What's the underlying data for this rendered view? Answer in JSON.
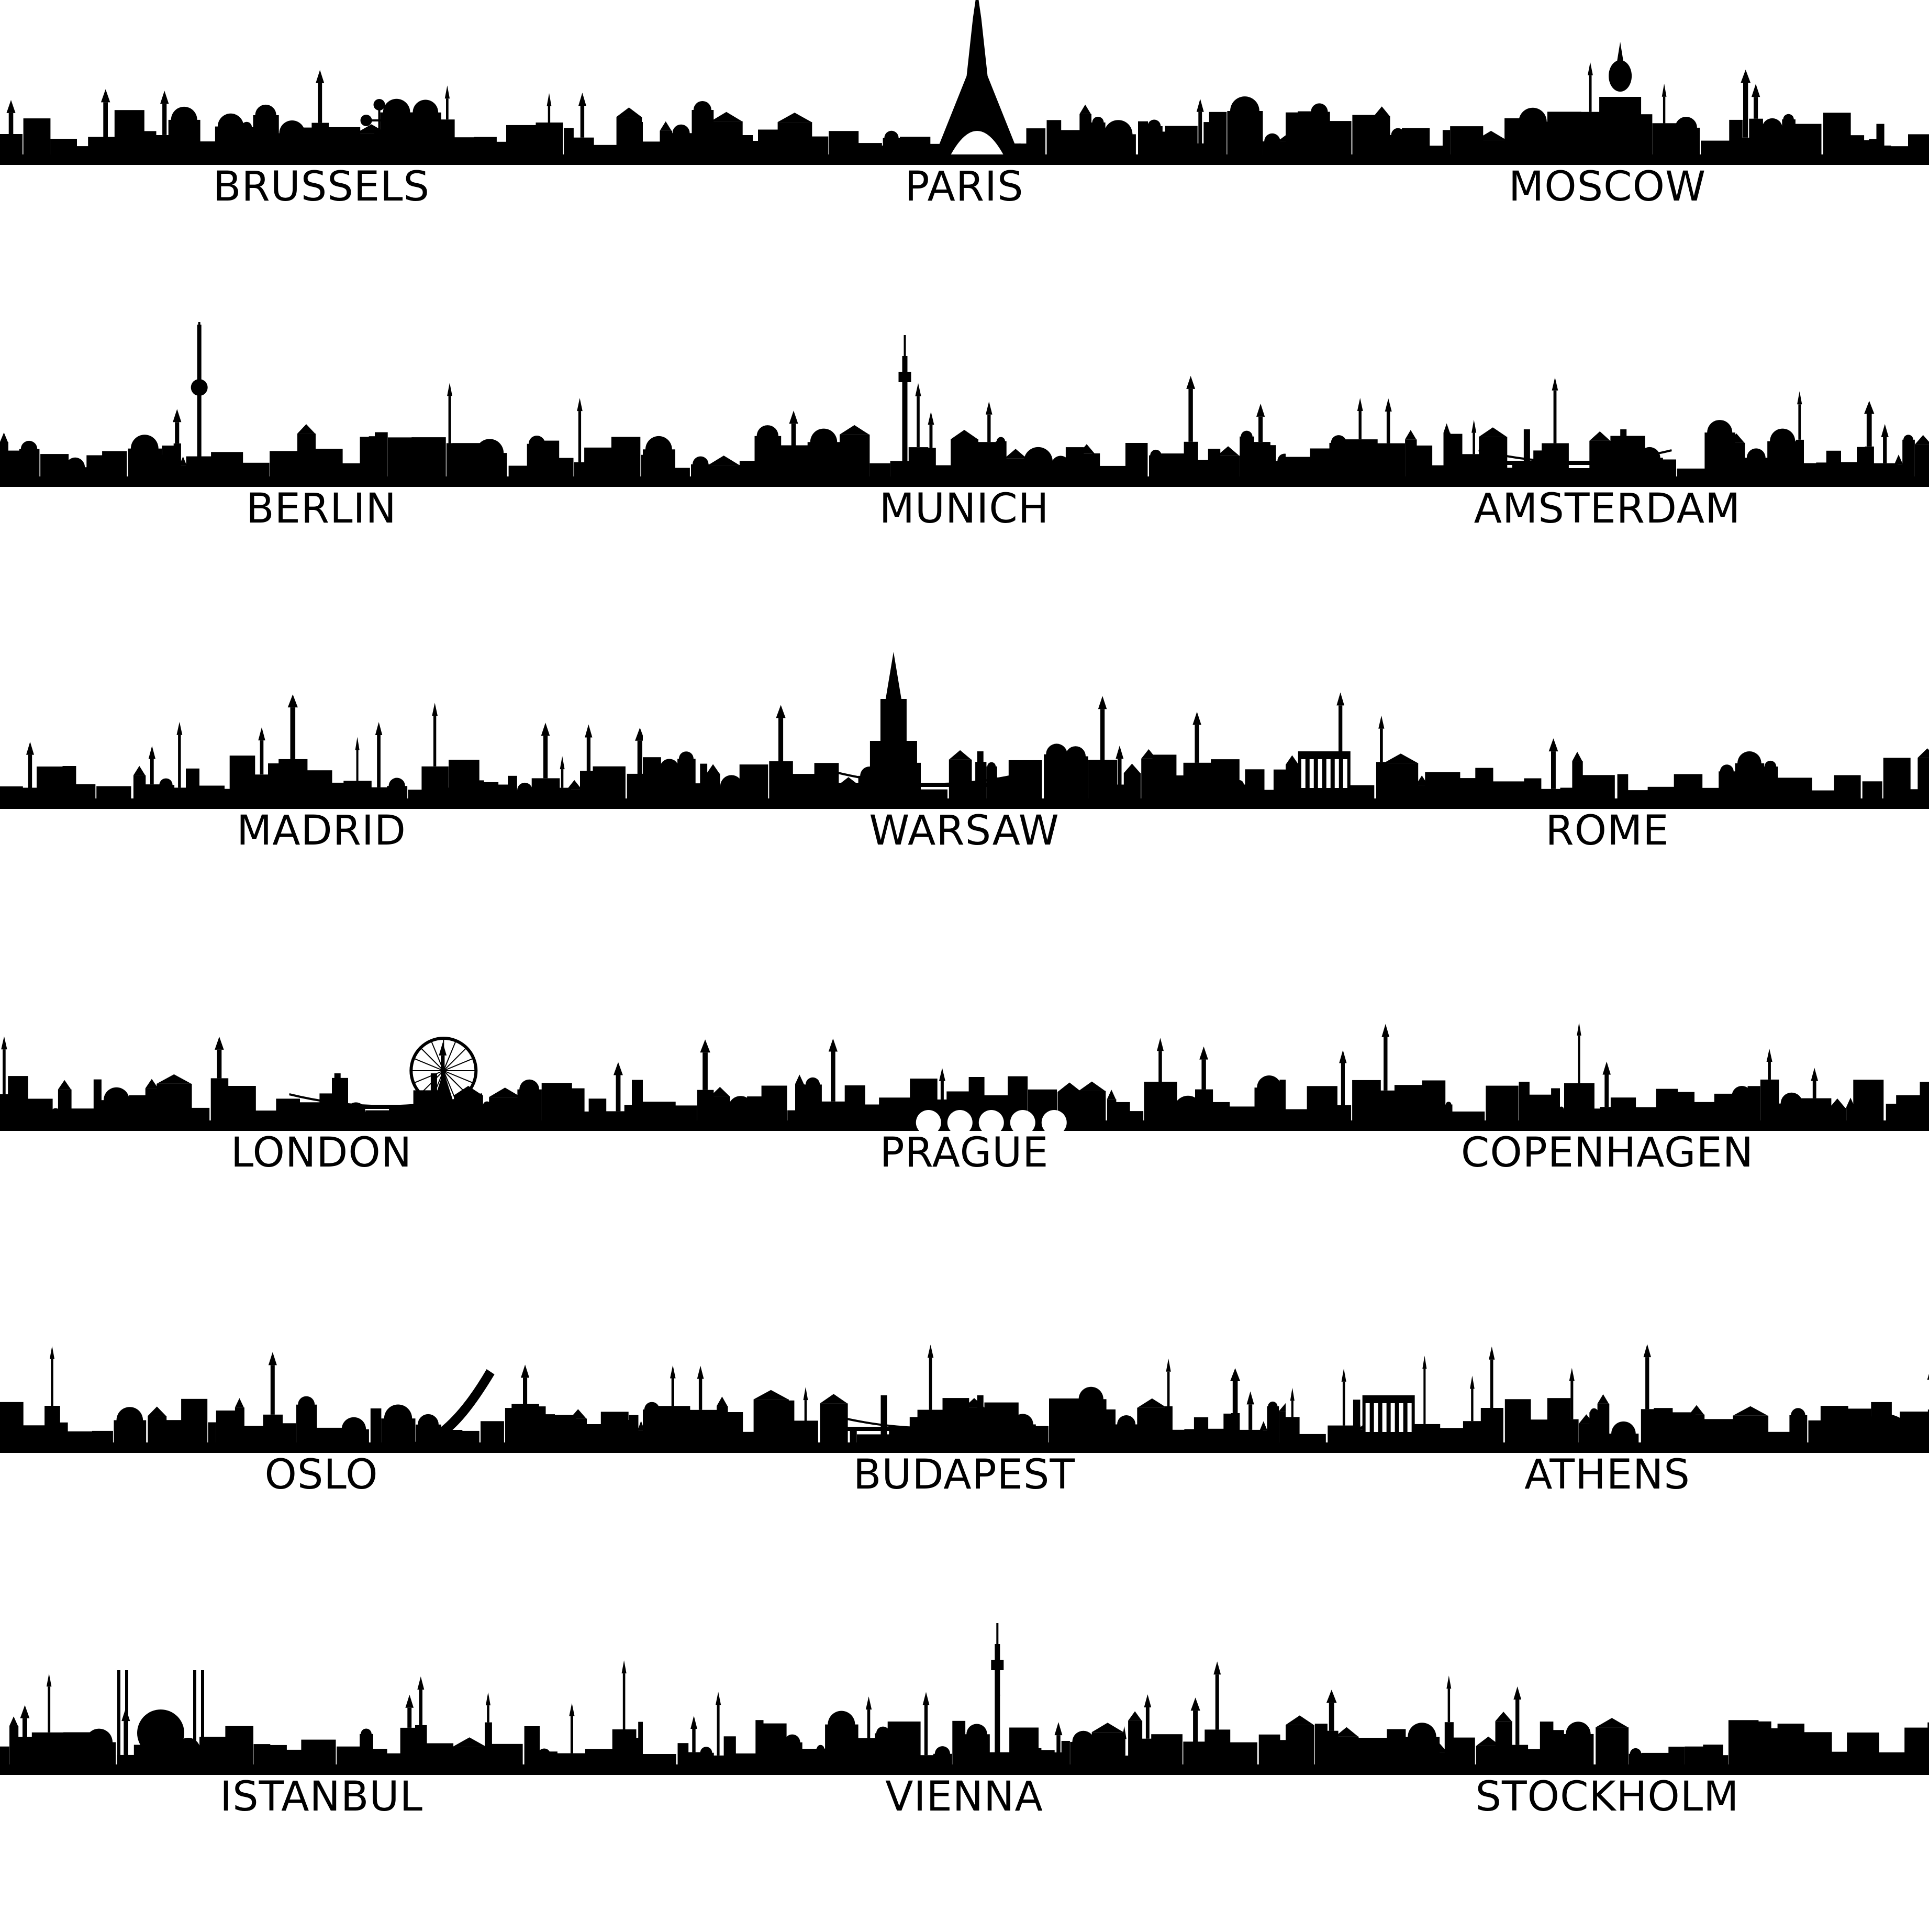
{
  "colors": {
    "silhouette": "#000000",
    "background": "#ffffff",
    "label": "#000000"
  },
  "cities": [
    {
      "label": "BRUSSELS",
      "skyline": "brussels-skyline-icon"
    },
    {
      "label": "PARIS",
      "skyline": "paris-skyline-icon"
    },
    {
      "label": "MOSCOW",
      "skyline": "moscow-skyline-icon"
    },
    {
      "label": "BERLIN",
      "skyline": "berlin-skyline-icon"
    },
    {
      "label": "MUNICH",
      "skyline": "munich-skyline-icon"
    },
    {
      "label": "AMSTERDAM",
      "skyline": "amsterdam-skyline-icon"
    },
    {
      "label": "MADRID",
      "skyline": "madrid-skyline-icon"
    },
    {
      "label": "WARSAW",
      "skyline": "warsaw-skyline-icon"
    },
    {
      "label": "ROME",
      "skyline": "rome-skyline-icon"
    },
    {
      "label": "LONDON",
      "skyline": "london-skyline-icon"
    },
    {
      "label": "PRAGUE",
      "skyline": "prague-skyline-icon"
    },
    {
      "label": "COPENHAGEN",
      "skyline": "copenhagen-skyline-icon"
    },
    {
      "label": "OSLO",
      "skyline": "oslo-skyline-icon"
    },
    {
      "label": "BUDAPEST",
      "skyline": "budapest-skyline-icon"
    },
    {
      "label": "ATHENS",
      "skyline": "athens-skyline-icon"
    },
    {
      "label": "ISTANBUL",
      "skyline": "istanbul-skyline-icon"
    },
    {
      "label": "VIENNA",
      "skyline": "vienna-skyline-icon"
    },
    {
      "label": "STOCKHOLM",
      "skyline": "stockholm-skyline-icon"
    }
  ]
}
